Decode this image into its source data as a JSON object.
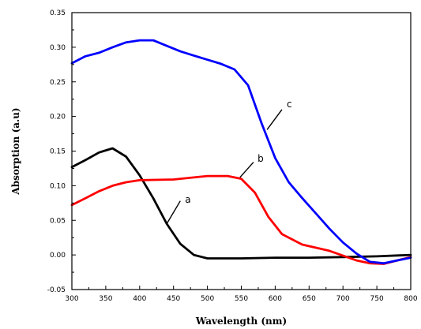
{
  "chart_data": {
    "type": "line",
    "title": "",
    "xlabel": "Wavelength (nm)",
    "ylabel": "Absorption (a.u)",
    "xlim": [
      300,
      800
    ],
    "ylim": [
      -0.05,
      0.35
    ],
    "xticks": [
      300,
      350,
      400,
      450,
      500,
      550,
      600,
      650,
      700,
      750,
      800
    ],
    "yticks": [
      -0.05,
      0.0,
      0.05,
      0.1,
      0.15,
      0.2,
      0.25,
      0.3,
      0.35
    ],
    "xtick_labels": [
      "300",
      "350",
      "400",
      "450",
      "500",
      "550",
      "600",
      "650",
      "700",
      "750",
      "800"
    ],
    "ytick_labels": [
      "-0.05",
      "0.00",
      "0.05",
      "0.10",
      "0.15",
      "0.20",
      "0.25",
      "0.30",
      "0.35"
    ],
    "grid": false,
    "series": [
      {
        "name": "a",
        "color": "#000000",
        "x": [
          300,
          320,
          340,
          360,
          380,
          400,
          420,
          440,
          460,
          480,
          500,
          520,
          550,
          600,
          650,
          700,
          750,
          800
        ],
        "y": [
          0.127,
          0.137,
          0.148,
          0.154,
          0.142,
          0.115,
          0.082,
          0.045,
          0.016,
          0.0,
          -0.005,
          -0.005,
          -0.005,
          -0.004,
          -0.004,
          -0.003,
          -0.002,
          0.0
        ]
      },
      {
        "name": "b",
        "color": "#ff0000",
        "x": [
          300,
          320,
          340,
          360,
          380,
          400,
          450,
          500,
          530,
          550,
          570,
          590,
          610,
          640,
          680,
          720,
          740,
          760,
          780,
          800
        ],
        "y": [
          0.072,
          0.082,
          0.092,
          0.1,
          0.105,
          0.108,
          0.109,
          0.114,
          0.114,
          0.11,
          0.09,
          0.055,
          0.03,
          0.015,
          0.006,
          -0.008,
          -0.012,
          -0.013,
          -0.008,
          -0.003
        ]
      },
      {
        "name": "c",
        "color": "#0000ff",
        "x": [
          300,
          320,
          340,
          360,
          380,
          400,
          420,
          440,
          460,
          480,
          500,
          520,
          540,
          560,
          580,
          600,
          620,
          640,
          660,
          680,
          700,
          720,
          740,
          760,
          780,
          800
        ],
        "y": [
          0.277,
          0.287,
          0.292,
          0.3,
          0.307,
          0.31,
          0.31,
          0.302,
          0.294,
          0.288,
          0.282,
          0.276,
          0.268,
          0.245,
          0.19,
          0.14,
          0.105,
          0.082,
          0.06,
          0.038,
          0.018,
          0.002,
          -0.01,
          -0.012,
          -0.008,
          -0.004
        ]
      }
    ],
    "annotations": [
      {
        "text": "a",
        "series": "a",
        "from": [
          440,
          0.045
        ],
        "to": [
          460,
          0.078
        ],
        "label_at": [
          467,
          0.08
        ]
      },
      {
        "text": "b",
        "series": "b",
        "from": [
          548,
          0.112
        ],
        "to": [
          568,
          0.134
        ],
        "label_at": [
          574,
          0.139
        ]
      },
      {
        "text": "c",
        "series": "c",
        "from": [
          588,
          0.181
        ],
        "to": [
          610,
          0.21
        ],
        "label_at": [
          617,
          0.218
        ]
      }
    ]
  }
}
